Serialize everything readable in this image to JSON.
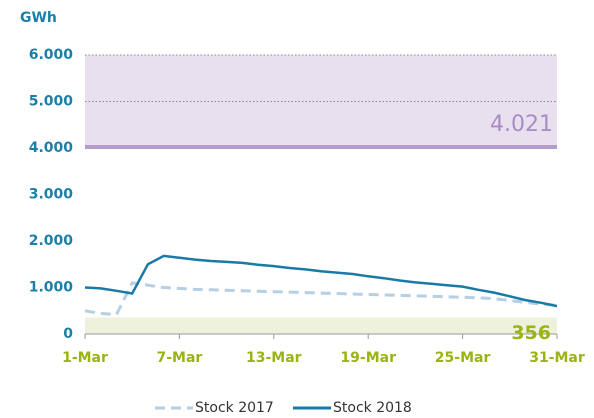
{
  "chart_data": {
    "type": "line",
    "y_label": "GWh",
    "x": [
      1,
      2,
      3,
      4,
      5,
      6,
      7,
      8,
      9,
      10,
      11,
      12,
      13,
      14,
      15,
      16,
      17,
      18,
      19,
      20,
      21,
      22,
      23,
      24,
      25,
      26,
      27,
      28,
      29,
      30,
      31
    ],
    "series": [
      {
        "name": "Stock 2017",
        "color": "#b6cfe3",
        "dashed": true,
        "values": [
          500,
          440,
          420,
          1100,
          1050,
          1000,
          980,
          960,
          950,
          940,
          930,
          920,
          910,
          900,
          890,
          880,
          870,
          860,
          850,
          840,
          830,
          820,
          810,
          800,
          790,
          780,
          760,
          720,
          680,
          640,
          620
        ]
      },
      {
        "name": "Stock 2018",
        "color": "#1a7aa6",
        "dashed": false,
        "values": [
          1000,
          980,
          930,
          870,
          1500,
          1680,
          1640,
          1600,
          1570,
          1550,
          1530,
          1490,
          1460,
          1420,
          1390,
          1350,
          1320,
          1290,
          1240,
          1200,
          1150,
          1110,
          1080,
          1050,
          1020,
          950,
          890,
          810,
          730,
          670,
          600
        ]
      }
    ],
    "upper_band": {
      "value": 4021,
      "label": "4.021",
      "color": "#e8e0ef",
      "line_color": "#b49ccb",
      "text_color": "#a98cc4"
    },
    "lower_band": {
      "value": 356,
      "label": "356",
      "color": "#eef2dc",
      "text_color": "#9ab317"
    },
    "xlim": [
      1,
      31
    ],
    "xticks": [
      {
        "value": 1,
        "label": "1-Mar"
      },
      {
        "value": 7,
        "label": "7-Mar"
      },
      {
        "value": 13,
        "label": "13-Mar"
      },
      {
        "value": 19,
        "label": "19-Mar"
      },
      {
        "value": 25,
        "label": "25-Mar"
      },
      {
        "value": 31,
        "label": "31-Mar"
      }
    ],
    "ylim": [
      0,
      6000
    ],
    "yticks": [
      0,
      {
        "value": 1000,
        "label": "1.000"
      },
      {
        "value": 2000,
        "label": "2.000"
      },
      {
        "value": 3000,
        "label": "3.000"
      },
      {
        "value": 4000,
        "label": "4.000"
      },
      {
        "value": 5000,
        "label": "5.000"
      },
      {
        "value": 6000,
        "label": "6.000"
      }
    ],
    "grid": true
  }
}
